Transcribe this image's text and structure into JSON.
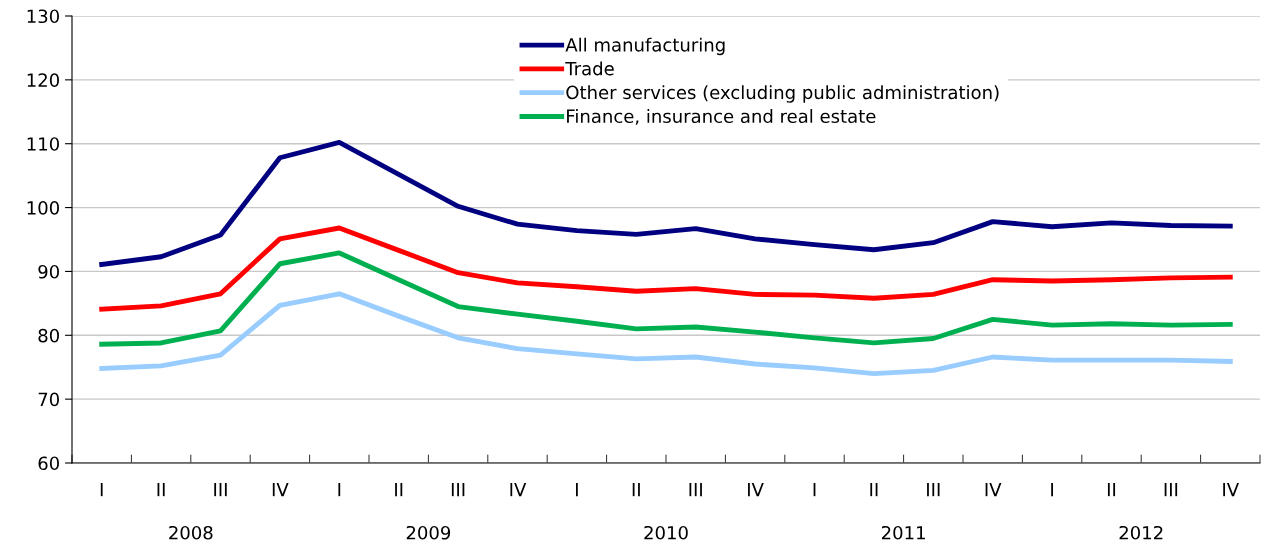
{
  "chart_data": {
    "type": "line",
    "categories": [
      "I",
      "II",
      "III",
      "IV",
      "I",
      "II",
      "III",
      "IV",
      "I",
      "II",
      "III",
      "IV",
      "I",
      "II",
      "III",
      "IV",
      "I",
      "II",
      "III",
      "IV"
    ],
    "series": [
      {
        "name": "All manufacturing",
        "color": "#000080",
        "values": [
          91.1,
          92.3,
          95.7,
          107.8,
          110.2,
          105.2,
          100.2,
          97.4,
          96.4,
          95.8,
          96.7,
          95.1,
          94.2,
          93.4,
          94.5,
          97.8,
          97.0,
          97.6,
          97.2,
          97.1
        ]
      },
      {
        "name": "Trade",
        "color": "#ff0000",
        "values": [
          84.1,
          84.6,
          86.5,
          95.1,
          96.8,
          93.3,
          89.8,
          88.2,
          87.6,
          86.9,
          87.3,
          86.4,
          86.3,
          85.8,
          86.4,
          88.7,
          88.5,
          88.7,
          89.0,
          89.1
        ]
      },
      {
        "name": "Other services (excluding public administration)",
        "color": "#99ccff",
        "values": [
          74.8,
          75.2,
          76.9,
          84.7,
          86.5,
          83.0,
          79.6,
          77.9,
          77.1,
          76.3,
          76.6,
          75.5,
          74.9,
          74.0,
          74.5,
          76.6,
          76.1,
          76.1,
          76.1,
          75.9
        ]
      },
      {
        "name": "Finance, insurance and real estate",
        "color": "#00b050",
        "values": [
          78.6,
          78.8,
          80.7,
          91.2,
          92.9,
          88.7,
          84.5,
          83.3,
          82.2,
          81.0,
          81.3,
          80.5,
          79.6,
          78.8,
          79.5,
          82.5,
          81.6,
          81.8,
          81.6,
          81.7
        ]
      }
    ],
    "annotations": [
      "2008",
      "2009",
      "2010",
      "2011",
      "2012"
    ],
    "ylim": [
      60,
      130
    ],
    "yticks": [
      60,
      70,
      80,
      90,
      100,
      110,
      120,
      130
    ],
    "grid": "y",
    "legend": "top",
    "marker": "none",
    "line_style": "solid"
  }
}
